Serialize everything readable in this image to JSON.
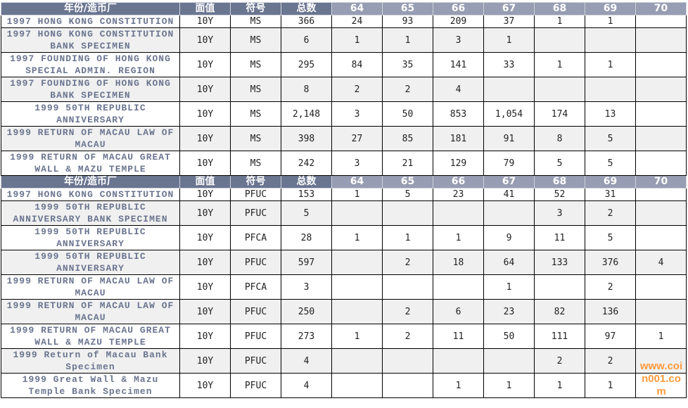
{
  "header": {
    "name": "年份/造币厂",
    "denomination": "面值",
    "grade": "符号",
    "total": "总数",
    "years": [
      "64",
      "65",
      "66",
      "67",
      "68",
      "69",
      "70"
    ]
  },
  "sections": [
    {
      "rows": [
        {
          "name": "1997 HONG KONG CONSTITUTION",
          "denom": "10Y",
          "grade": "MS",
          "total": "366",
          "values": [
            "24",
            "93",
            "209",
            "37",
            "1",
            "1",
            ""
          ],
          "lines": 1
        },
        {
          "name": "1997 HONG KONG CONSTITUTION BANK SPECIMEN",
          "denom": "10Y",
          "grade": "MS",
          "total": "6",
          "values": [
            "1",
            "1",
            "3",
            "1",
            "",
            "",
            ""
          ],
          "lines": 2
        },
        {
          "name": "1997 FOUNDING OF HONG KONG SPECIAL ADMIN. REGION",
          "denom": "10Y",
          "grade": "MS",
          "total": "295",
          "values": [
            "84",
            "35",
            "141",
            "33",
            "1",
            "1",
            ""
          ],
          "lines": 2
        },
        {
          "name": "1997 FOUNDING OF HONG KONG BANK SPECIMEN",
          "denom": "10Y",
          "grade": "MS",
          "total": "8",
          "values": [
            "2",
            "2",
            "4",
            "",
            "",
            "",
            ""
          ],
          "lines": 2
        },
        {
          "name": "1999 50TH REPUBLIC ANNIVERSARY",
          "denom": "10Y",
          "grade": "MS",
          "total": "2,148",
          "values": [
            "3",
            "50",
            "853",
            "1,054",
            "174",
            "13",
            ""
          ],
          "lines": 2
        },
        {
          "name": "1999 RETURN OF MACAU LAW OF MACAU",
          "denom": "10Y",
          "grade": "MS",
          "total": "398",
          "values": [
            "27",
            "85",
            "181",
            "91",
            "8",
            "5",
            ""
          ],
          "lines": 2
        },
        {
          "name": "1999 RETURN OF MACAU GREAT WALL & MAZU TEMPLE",
          "denom": "10Y",
          "grade": "MS",
          "total": "242",
          "values": [
            "3",
            "21",
            "129",
            "79",
            "5",
            "5",
            ""
          ],
          "lines": 2
        }
      ]
    },
    {
      "rows": [
        {
          "name": "1997 HONG KONG CONSTITUTION",
          "denom": "10Y",
          "grade": "PFUC",
          "total": "153",
          "values": [
            "1",
            "5",
            "23",
            "41",
            "52",
            "31",
            ""
          ],
          "lines": 1
        },
        {
          "name": "1999 50TH REPUBLIC ANNIVERSARY BANK SPECIMEN",
          "denom": "10Y",
          "grade": "PFUC",
          "total": "5",
          "values": [
            "",
            "",
            "",
            "",
            "3",
            "2",
            ""
          ],
          "lines": 2
        },
        {
          "name": "1999 50TH REPUBLIC ANNIVERSARY",
          "denom": "10Y",
          "grade": "PFCA",
          "total": "28",
          "values": [
            "1",
            "1",
            "1",
            "9",
            "11",
            "5",
            ""
          ],
          "lines": 2
        },
        {
          "name": "1999 50TH REPUBLIC ANNIVERSARY",
          "denom": "10Y",
          "grade": "PFUC",
          "total": "597",
          "values": [
            "",
            "2",
            "18",
            "64",
            "133",
            "376",
            "4"
          ],
          "lines": 2
        },
        {
          "name": "1999 RETURN OF MACAU LAW OF MACAU",
          "denom": "10Y",
          "grade": "PFCA",
          "total": "3",
          "values": [
            "",
            "",
            "",
            "1",
            "",
            "2",
            ""
          ],
          "lines": 2
        },
        {
          "name": "1999 RETURN OF MACAU LAW OF MACAU",
          "denom": "10Y",
          "grade": "PFUC",
          "total": "250",
          "values": [
            "",
            "2",
            "6",
            "23",
            "82",
            "136",
            ""
          ],
          "lines": 2
        },
        {
          "name": "1999 RETURN OF MACAU GREAT WALL & MAZU TEMPLE",
          "denom": "10Y",
          "grade": "PFUC",
          "total": "273",
          "values": [
            "1",
            "2",
            "11",
            "50",
            "111",
            "97",
            "1"
          ],
          "lines": 2
        },
        {
          "name": "1999 Return of Macau Bank Specimen",
          "denom": "10Y",
          "grade": "PFUC",
          "total": "4",
          "values": [
            "",
            "",
            "",
            "",
            "2",
            "2",
            ""
          ],
          "lines": 2
        },
        {
          "name": "1999 Great Wall & Mazu Temple Bank Specimen",
          "denom": "10Y",
          "grade": "PFUC",
          "total": "4",
          "values": [
            "",
            "",
            "1",
            "1",
            "1",
            "1",
            ""
          ],
          "lines": 2
        }
      ]
    }
  ],
  "watermark": "www.coin001.com"
}
